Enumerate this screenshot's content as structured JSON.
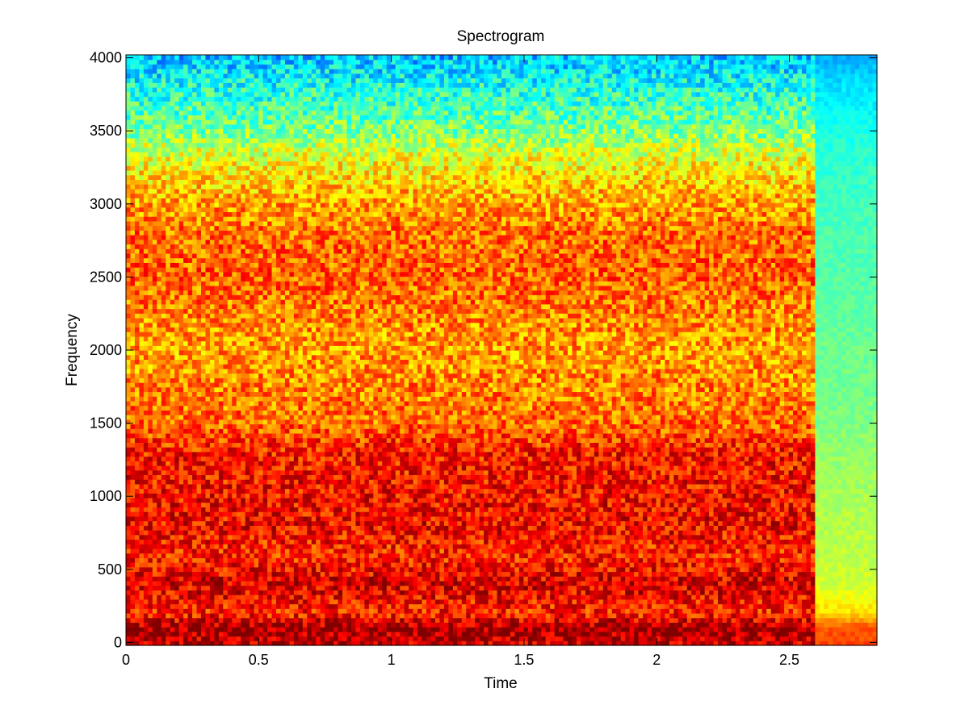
{
  "chart_data": {
    "type": "heatmap",
    "title": "Spectrogram",
    "xlabel": "Time",
    "ylabel": "Frequency",
    "xlim": [
      0,
      2.83
    ],
    "ylim": [
      -20,
      4020
    ],
    "x_ticks": [
      0,
      0.5,
      1,
      1.5,
      2,
      2.5
    ],
    "x_tick_labels": [
      "0",
      "0.5",
      "1",
      "1.5",
      "2",
      "2.5"
    ],
    "y_ticks": [
      0,
      500,
      1000,
      1500,
      2000,
      2500,
      3000,
      3500,
      4000
    ],
    "y_tick_labels": [
      "0",
      "500",
      "1000",
      "1500",
      "2000",
      "2500",
      "3000",
      "3500",
      "4000"
    ],
    "colormap": "jet",
    "grid": false,
    "signal_end_time": 2.6,
    "approx_intensity_profile": {
      "frequency": [
        0,
        100,
        200,
        400,
        600,
        800,
        1000,
        1300,
        1500,
        1700,
        2000,
        2200,
        2500,
        2800,
        3000,
        3300,
        3500,
        3800,
        4000
      ],
      "during_signal": [
        0.93,
        0.97,
        0.84,
        0.91,
        0.84,
        0.88,
        0.87,
        0.86,
        0.77,
        0.75,
        0.72,
        0.74,
        0.78,
        0.77,
        0.72,
        0.62,
        0.5,
        0.4,
        0.32
      ],
      "after_signal": [
        0.8,
        0.8,
        0.66,
        0.58,
        0.56,
        0.55,
        0.54,
        0.52,
        0.5,
        0.49,
        0.48,
        0.47,
        0.46,
        0.45,
        0.44,
        0.42,
        0.4,
        0.35,
        0.3
      ]
    }
  }
}
